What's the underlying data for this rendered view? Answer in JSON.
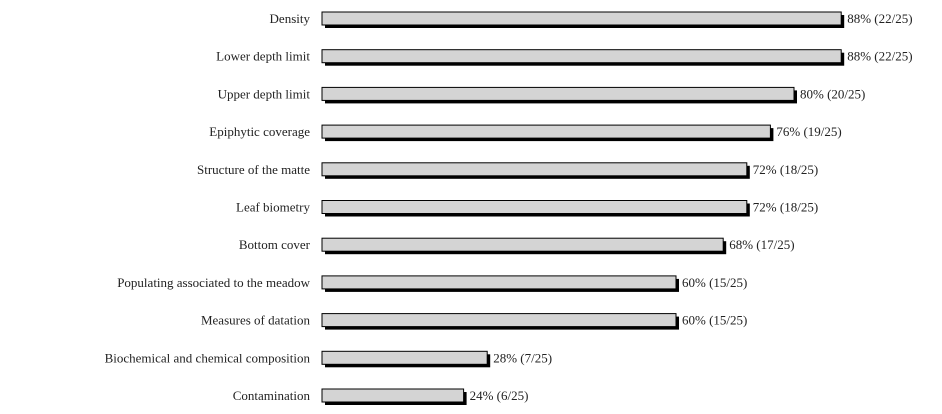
{
  "chart_data": {
    "type": "bar",
    "orientation": "horizontal",
    "categories": [
      "Density",
      "Lower depth limit",
      "Upper depth limit",
      "Epiphytic coverage",
      "Structure of the matte",
      "Leaf biometry",
      "Bottom cover",
      "Populating associated to the meadow",
      "Measures of datation",
      "Biochemical and chemical composition",
      "Contamination"
    ],
    "values": [
      88,
      88,
      80,
      76,
      72,
      72,
      68,
      60,
      60,
      28,
      24
    ],
    "value_labels": [
      "88% (22/25)",
      "88% (22/25)",
      "80% (20/25)",
      "76% (19/25)",
      "72% (18/25)",
      "72% (18/25)",
      "68% (17/25)",
      "60% (15/25)",
      "60% (15/25)",
      "28% (7/25)",
      "24% (6/25)"
    ],
    "xlim": [
      0,
      100
    ],
    "grid": false,
    "bar_color": "#d4d4d4",
    "bar_edge_color": "#000000",
    "shadow_color": "#000000"
  }
}
